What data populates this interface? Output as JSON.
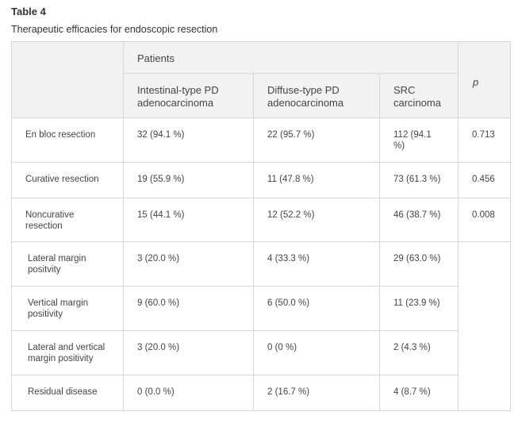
{
  "title": "Table 4",
  "caption": "Therapeutic efficacies for endoscopic resection",
  "header": {
    "group": "Patients",
    "columns": [
      "Intestinal-type PD adenocarcinoma",
      "Diffuse-type PD adenocarcinoma",
      "SRC carcinoma"
    ],
    "p": "p"
  },
  "rows": [
    {
      "label": "En bloc resection",
      "values": [
        "32 (94.1 %)",
        "22 (95.7 %)",
        "112 (94.1 %)"
      ],
      "p": "0.713"
    },
    {
      "label": "Curative resection",
      "values": [
        "19 (55.9 %)",
        "11 (47.8 %)",
        "73 (61.3 %)"
      ],
      "p": "0.456"
    },
    {
      "label": "Noncurative resection",
      "values": [
        "15 (44.1 %)",
        "12 (52.2 %)",
        "46 (38.7 %)"
      ],
      "p": "0.008"
    },
    {
      "label": "Lateral margin positvity",
      "values": [
        "3 (20.0 %)",
        "4 (33.3 %)",
        "29 (63.0 %)"
      ],
      "p": ""
    },
    {
      "label": "Vertical margin positivity",
      "values": [
        "9 (60.0 %)",
        "6 (50.0 %)",
        "11 (23.9 %)"
      ],
      "p": ""
    },
    {
      "label": "Lateral and vertical margin positivity",
      "values": [
        "3 (20.0 %)",
        "0 (0 %)",
        "2 (4.3 %)"
      ],
      "p": ""
    },
    {
      "label": "Residual disease",
      "values": [
        "0 (0.0 %)",
        "2 (16.7 %)",
        "4 (8.7 %)"
      ],
      "p": ""
    }
  ]
}
